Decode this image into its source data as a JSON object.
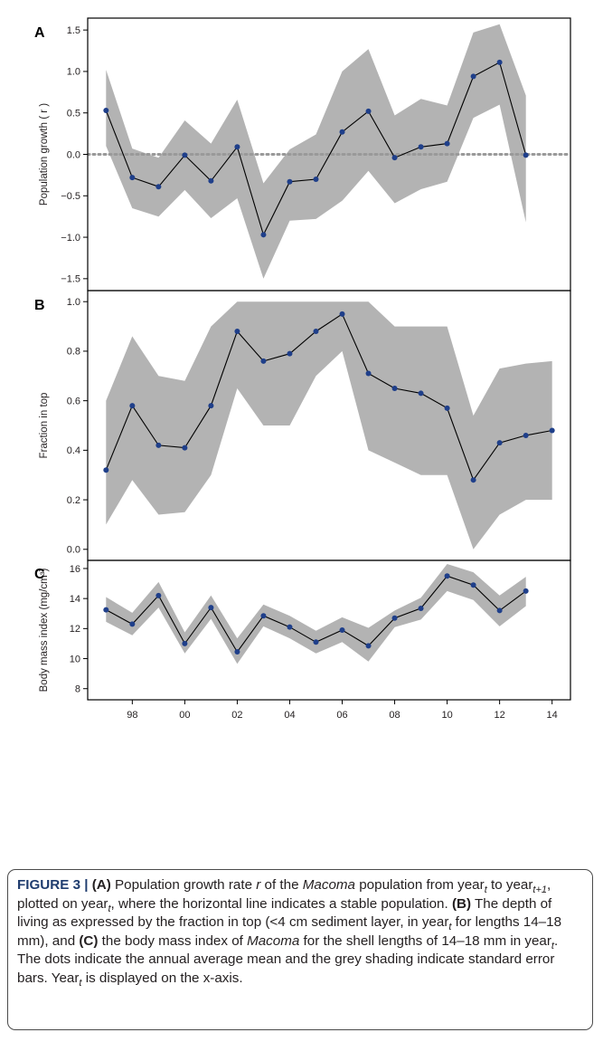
{
  "figure": {
    "caption": {
      "label": "FIGURE 3 | ",
      "parts": [
        {
          "t": "(A)",
          "b": true
        },
        {
          "t": " Population growth rate "
        },
        {
          "t": "r",
          "i": true
        },
        {
          "t": " of the "
        },
        {
          "t": "Macoma",
          "i": true
        },
        {
          "t": " population from year"
        },
        {
          "t": "t",
          "i": true,
          "sub": true
        },
        {
          "t": " to year"
        },
        {
          "t": "t+1",
          "i": true,
          "sub": true
        },
        {
          "t": ", plotted on year"
        },
        {
          "t": "t",
          "i": true,
          "sub": true
        },
        {
          "t": ", where the horizontal line indicates a stable population. "
        },
        {
          "t": "(B)",
          "b": true
        },
        {
          "t": " The depth of living as expressed by the fraction in top (<4 cm sediment layer, in year"
        },
        {
          "t": "t",
          "i": true,
          "sub": true
        },
        {
          "t": " for lengths 14–18 mm), and "
        },
        {
          "t": "(C)",
          "b": true
        },
        {
          "t": " the body mass index of "
        },
        {
          "t": "Macoma",
          "i": true
        },
        {
          "t": " for the shell lengths of 14–18 mm in year"
        },
        {
          "t": "t",
          "i": true,
          "sub": true
        },
        {
          "t": ". The dots indicate the annual average mean and the grey shading indicate standard error bars. Year"
        },
        {
          "t": "t",
          "i": true,
          "sub": true
        },
        {
          "t": " is displayed on the x-axis."
        }
      ]
    }
  },
  "colors": {
    "band": "#b3b3b3",
    "line": "#000000",
    "dot": "#1f3f8a",
    "reference_line": "#999999"
  },
  "chart_data": [
    {
      "panel": "A",
      "type": "line",
      "ylabel": "Population growth ( r )",
      "ylim": [
        -1.6,
        1.6
      ],
      "yticks": [
        1.5,
        1.0,
        0.5,
        0.0,
        -0.5,
        -1.0,
        -1.5
      ],
      "ytick_labels": [
        "1.5",
        "1.0",
        "0.5",
        "0.0",
        "−0.5",
        "−1.0",
        "−1.5"
      ],
      "reference_line": 0.0,
      "x": [
        1997,
        1998,
        1999,
        2000,
        2001,
        2002,
        2003,
        2004,
        2005,
        2006,
        2007,
        2008,
        2009,
        2010,
        2011,
        2012,
        2013
      ],
      "values": [
        0.53,
        -0.28,
        -0.39,
        -0.01,
        -0.32,
        0.09,
        -0.97,
        -0.33,
        -0.3,
        0.27,
        0.52,
        -0.04,
        0.09,
        0.13,
        0.94,
        1.11,
        -0.01
      ],
      "lower": [
        0.1,
        -0.65,
        -0.75,
        -0.43,
        -0.77,
        -0.53,
        -1.5,
        -0.8,
        -0.78,
        -0.56,
        -0.2,
        -0.59,
        -0.42,
        -0.33,
        0.44,
        0.6,
        -0.82
      ],
      "upper": [
        1.02,
        0.07,
        -0.04,
        0.41,
        0.13,
        0.66,
        -0.35,
        0.06,
        0.24,
        1.0,
        1.27,
        0.47,
        0.67,
        0.59,
        1.47,
        1.57,
        0.71
      ]
    },
    {
      "panel": "B",
      "type": "line",
      "ylabel": "Fraction in top",
      "ylim": [
        -0.03,
        1.03
      ],
      "yticks": [
        1.0,
        0.8,
        0.6,
        0.4,
        0.2,
        0.0
      ],
      "ytick_labels": [
        "1.0",
        "0.8",
        "0.6",
        "0.4",
        "0.2",
        "0.0"
      ],
      "x": [
        1997,
        1998,
        1999,
        2000,
        2001,
        2002,
        2003,
        2004,
        2005,
        2006,
        2007,
        2008,
        2009,
        2010,
        2011,
        2012,
        2013,
        2014
      ],
      "values": [
        0.32,
        0.58,
        0.42,
        0.41,
        0.58,
        0.88,
        0.76,
        0.79,
        0.88,
        0.95,
        0.71,
        0.65,
        0.63,
        0.57,
        0.28,
        0.43,
        0.46,
        0.48
      ],
      "lower": [
        0.1,
        0.28,
        0.14,
        0.15,
        0.3,
        0.65,
        0.5,
        0.5,
        0.7,
        0.8,
        0.4,
        0.35,
        0.3,
        0.3,
        0.0,
        0.14,
        0.2,
        0.2
      ],
      "upper": [
        0.6,
        0.86,
        0.7,
        0.68,
        0.9,
        1.0,
        1.0,
        1.0,
        1.0,
        1.0,
        1.0,
        0.9,
        0.9,
        0.9,
        0.54,
        0.73,
        0.75,
        0.76
      ]
    },
    {
      "panel": "C",
      "type": "line",
      "ylabel": "Body mass index (mg/cm³)",
      "ylim": [
        7.5,
        16.3
      ],
      "yticks": [
        16,
        14,
        12,
        10,
        8
      ],
      "ytick_labels": [
        "16",
        "14",
        "12",
        "10",
        "8"
      ],
      "x": [
        1997,
        1998,
        1999,
        2000,
        2001,
        2002,
        2003,
        2004,
        2005,
        2006,
        2007,
        2008,
        2009,
        2010,
        2011,
        2012,
        2013
      ],
      "values": [
        13.25,
        12.3,
        14.2,
        11.0,
        13.4,
        10.45,
        12.85,
        12.1,
        11.1,
        11.9,
        10.85,
        12.7,
        13.35,
        15.5,
        14.9,
        13.2,
        14.5
      ],
      "lower": [
        12.45,
        11.55,
        13.4,
        10.35,
        12.65,
        9.65,
        12.15,
        11.35,
        10.35,
        11.1,
        9.8,
        12.1,
        12.6,
        14.5,
        13.9,
        12.15,
        13.5
      ],
      "upper": [
        14.1,
        13.05,
        15.1,
        11.75,
        14.2,
        11.35,
        13.6,
        12.85,
        11.85,
        12.75,
        12.05,
        13.2,
        14.05,
        16.3,
        15.75,
        14.2,
        15.45
      ],
      "xticks": [
        1998,
        2000,
        2002,
        2004,
        2006,
        2008,
        2010,
        2012,
        2014
      ],
      "xtick_labels": [
        "98",
        "00",
        "02",
        "04",
        "06",
        "08",
        "10",
        "12",
        "14"
      ]
    }
  ]
}
